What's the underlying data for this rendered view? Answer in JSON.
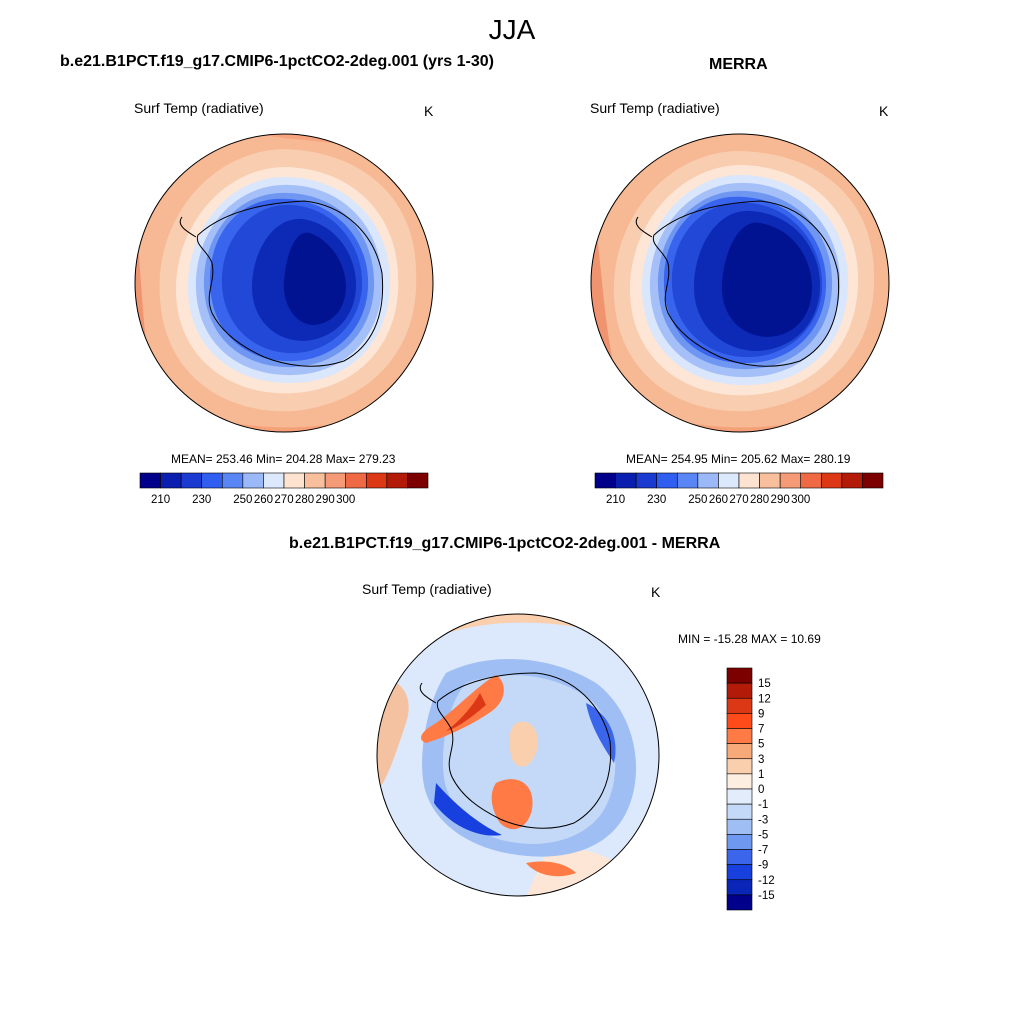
{
  "figure": {
    "season": "JJA"
  },
  "panels": {
    "model": {
      "title": "b.e21.B1PCT.f19_g17.CMIP6-1pctCO2-2deg.001 (yrs 1-30)",
      "variable": "Surf Temp (radiative)",
      "units": "K",
      "stats": "MEAN= 253.46  Min= 204.28  Max= 279.23"
    },
    "obs": {
      "title": "MERRA",
      "variable": "Surf Temp (radiative)",
      "units": "K",
      "stats": "MEAN= 254.95  Min= 205.62  Max= 280.19"
    },
    "diff": {
      "title": "b.e21.B1PCT.f19_g17.CMIP6-1pctCO2-2deg.001 - MERRA",
      "variable": "Surf Temp (radiative)",
      "units": "K",
      "stats": "MIN = -15.28 MAX =  10.69"
    }
  },
  "colorbars": {
    "abs_labels": [
      "210",
      "230",
      "250",
      "260",
      "270",
      "280",
      "290",
      "300"
    ],
    "abs_colors": [
      "#00008b",
      "#0a1fb0",
      "#1a3ad0",
      "#2f5ef0",
      "#5a86f5",
      "#9bb8f8",
      "#dce8fb",
      "#fde3d0",
      "#f8bf9c",
      "#f49a76",
      "#ef6a44",
      "#dd3815",
      "#b31a07",
      "#7d0000"
    ],
    "diff_labels": [
      "15",
      "12",
      "9",
      "7",
      "5",
      "3",
      "1",
      "0",
      "-1",
      "-3",
      "-5",
      "-7",
      "-9",
      "-12",
      "-15"
    ],
    "diff_colors": [
      "#7d0000",
      "#b31a07",
      "#dd3815",
      "#ff4a1a",
      "#ff7a45",
      "#f8a97a",
      "#f9cfae",
      "#fdeee2",
      "#e2ecfb",
      "#c4d8f7",
      "#9fbef4",
      "#6f98f0",
      "#3b66ec",
      "#1740de",
      "#0a26b8",
      "#00008b"
    ]
  },
  "chart_data": [
    {
      "type": "heatmap",
      "projection": "south polar stereographic",
      "title": "b.e21.B1PCT.f19_g17.CMIP6-1pctCO2-2deg.001 (yrs 1-30)",
      "variable": "Surf Temp (radiative)",
      "units": "K",
      "mean": 253.46,
      "min": 204.28,
      "max": 279.23,
      "contour_levels": [
        205,
        210,
        220,
        230,
        240,
        250,
        260,
        265,
        270,
        275,
        280,
        285,
        290,
        295,
        300
      ]
    },
    {
      "type": "heatmap",
      "projection": "south polar stereographic",
      "title": "MERRA",
      "variable": "Surf Temp (radiative)",
      "units": "K",
      "mean": 254.95,
      "min": 205.62,
      "max": 280.19,
      "contour_levels": [
        205,
        210,
        220,
        230,
        240,
        250,
        260,
        265,
        270,
        275,
        280,
        285,
        290,
        295,
        300
      ]
    },
    {
      "type": "heatmap",
      "projection": "south polar stereographic",
      "title": "b.e21.B1PCT.f19_g17.CMIP6-1pctCO2-2deg.001 - MERRA",
      "variable": "Surf Temp (radiative)",
      "units": "K",
      "min": -15.28,
      "max": 10.69,
      "contour_levels": [
        -15,
        -12,
        -9,
        -7,
        -5,
        -3,
        -1,
        0,
        1,
        3,
        5,
        7,
        9,
        12,
        15
      ]
    }
  ]
}
